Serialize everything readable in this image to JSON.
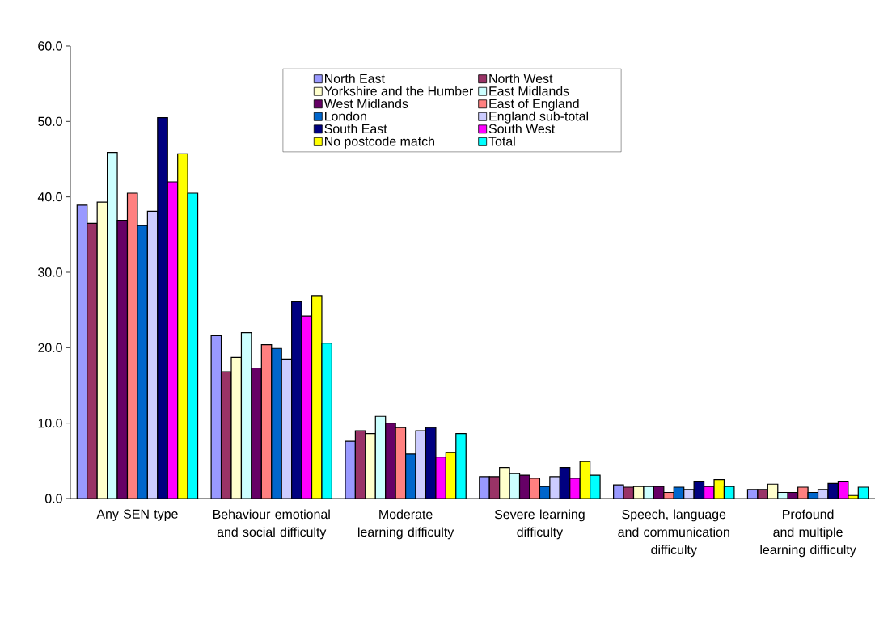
{
  "chart_data": {
    "type": "bar",
    "categories": [
      "Any SEN type",
      "Behaviour emotional and social difficulty",
      "Moderate learning difficulty",
      "Severe learning difficulty",
      "Speech, language and communication difficulty",
      "Profound and multiple learning difficulty"
    ],
    "series": [
      {
        "name": "North East",
        "color": "#9999ff",
        "values": [
          38.9,
          21.6,
          7.6,
          2.9,
          1.8,
          1.2
        ]
      },
      {
        "name": "North West",
        "color": "#993366",
        "values": [
          36.5,
          16.8,
          9.0,
          2.9,
          1.5,
          1.2
        ]
      },
      {
        "name": "Yorkshire and the Humber",
        "color": "#ffffcc",
        "values": [
          39.3,
          18.7,
          8.6,
          4.1,
          1.6,
          1.9
        ]
      },
      {
        "name": "East Midlands",
        "color": "#ccffff",
        "values": [
          45.9,
          22.0,
          10.9,
          3.3,
          1.6,
          0.8
        ]
      },
      {
        "name": "West Midlands",
        "color": "#660066",
        "values": [
          36.9,
          17.3,
          10.0,
          3.1,
          1.6,
          0.8
        ]
      },
      {
        "name": "East of England",
        "color": "#ff8080",
        "values": [
          40.5,
          20.4,
          9.4,
          2.7,
          0.8,
          1.5
        ]
      },
      {
        "name": "London",
        "color": "#0066cc",
        "values": [
          36.2,
          19.9,
          5.9,
          1.6,
          1.5,
          0.8
        ]
      },
      {
        "name": "England sub-total",
        "color": "#ccccff",
        "values": [
          38.1,
          18.5,
          9.0,
          2.9,
          1.2,
          1.2
        ]
      },
      {
        "name": "South East",
        "color": "#000080",
        "values": [
          50.5,
          26.1,
          9.4,
          4.1,
          2.3,
          2.0
        ]
      },
      {
        "name": "South West",
        "color": "#ff00ff",
        "values": [
          42.0,
          24.2,
          5.5,
          2.7,
          1.6,
          2.3
        ]
      },
      {
        "name": "No postcode match",
        "color": "#ffff00",
        "values": [
          45.7,
          26.9,
          6.1,
          4.9,
          2.5,
          0.4
        ]
      },
      {
        "name": "Total",
        "color": "#00ffff",
        "values": [
          40.5,
          20.6,
          8.6,
          3.1,
          1.6,
          1.5
        ]
      }
    ],
    "ylim": [
      0,
      60
    ],
    "yticks": [
      {
        "value": 0,
        "label": "0.0"
      },
      {
        "value": 10,
        "label": "10.0"
      },
      {
        "value": 20,
        "label": "20.0"
      },
      {
        "value": 30,
        "label": "30.0"
      },
      {
        "value": 40,
        "label": "40.0"
      },
      {
        "value": 50,
        "label": "50.0"
      },
      {
        "value": 60,
        "label": "60.0"
      }
    ],
    "legend": "top"
  }
}
